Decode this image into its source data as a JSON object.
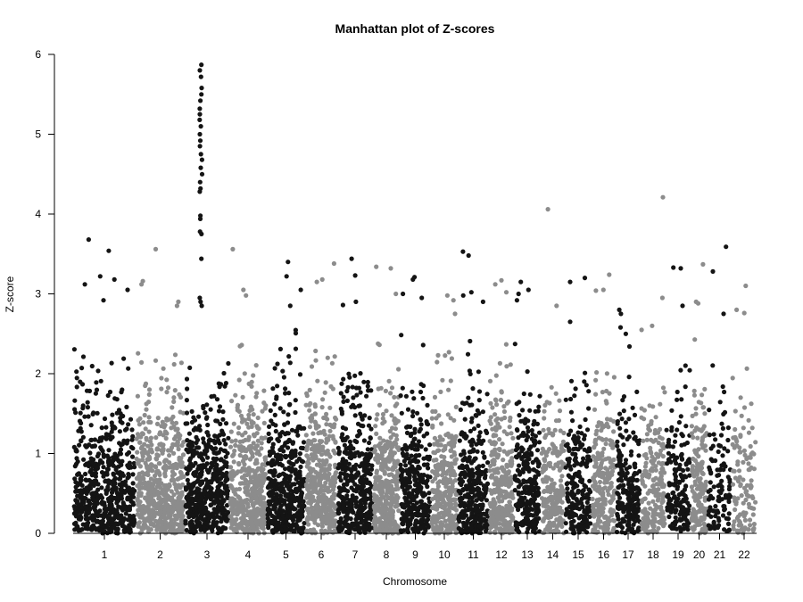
{
  "chart_data": {
    "type": "scatter",
    "title": "Manhattan plot of Z-scores",
    "xlabel": "Chromosome",
    "ylabel": "Z-score",
    "ylim": [
      0,
      6
    ],
    "yticks": [
      0,
      1,
      2,
      3,
      4,
      5,
      6
    ],
    "grid": false,
    "legend": "none",
    "colors": {
      "odd": "#141414",
      "even": "#8c8c8c"
    },
    "chromosomes": [
      {
        "label": "1",
        "peaks": [
          3.68,
          3.54,
          3.22,
          3.18,
          3.12,
          3.05,
          2.92
        ]
      },
      {
        "label": "2",
        "peaks": [
          3.56,
          3.16,
          3.12,
          2.9,
          2.85
        ]
      },
      {
        "label": "3",
        "peaks": [
          5.87,
          5.8,
          5.72,
          5.58,
          5.5,
          5.42,
          5.32,
          5.25,
          5.18,
          5.1,
          5.0,
          4.92,
          4.85,
          4.75,
          4.68,
          4.58,
          4.5,
          4.4,
          4.32,
          4.28,
          3.98,
          3.94,
          3.78,
          3.75,
          3.44,
          2.95,
          2.9,
          2.85
        ]
      },
      {
        "label": "4",
        "peaks": [
          3.56,
          3.05,
          2.98
        ]
      },
      {
        "label": "5",
        "peaks": [
          3.4,
          3.22,
          3.05,
          2.85
        ]
      },
      {
        "label": "6",
        "peaks": [
          3.38,
          3.18,
          3.15
        ]
      },
      {
        "label": "7",
        "peaks": [
          3.44,
          3.23,
          2.9,
          2.86
        ]
      },
      {
        "label": "8",
        "peaks": [
          3.34,
          3.32,
          3.0
        ]
      },
      {
        "label": "9",
        "peaks": [
          3.21,
          3.18,
          3.0,
          2.95
        ]
      },
      {
        "label": "10",
        "peaks": [
          2.98,
          2.92,
          2.75
        ]
      },
      {
        "label": "11",
        "peaks": [
          3.53,
          3.48,
          3.02,
          2.98,
          2.9
        ]
      },
      {
        "label": "12",
        "peaks": [
          3.17,
          3.12,
          3.02
        ]
      },
      {
        "label": "13",
        "peaks": [
          3.15,
          3.05,
          3.0,
          2.92
        ]
      },
      {
        "label": "14",
        "peaks": [
          4.06,
          2.85
        ]
      },
      {
        "label": "15",
        "peaks": [
          3.2,
          3.15,
          2.65
        ]
      },
      {
        "label": "16",
        "peaks": [
          3.24,
          3.05,
          3.04
        ]
      },
      {
        "label": "17",
        "peaks": [
          2.8,
          2.75,
          2.58
        ]
      },
      {
        "label": "18",
        "peaks": [
          4.21,
          2.95,
          2.6
        ]
      },
      {
        "label": "19",
        "peaks": [
          3.33,
          3.32,
          2.85
        ]
      },
      {
        "label": "20",
        "peaks": [
          3.37,
          2.9,
          2.88
        ]
      },
      {
        "label": "21",
        "peaks": [
          3.59,
          3.28,
          2.75
        ]
      },
      {
        "label": "22",
        "peaks": [
          3.1,
          2.8,
          2.76
        ]
      }
    ]
  }
}
